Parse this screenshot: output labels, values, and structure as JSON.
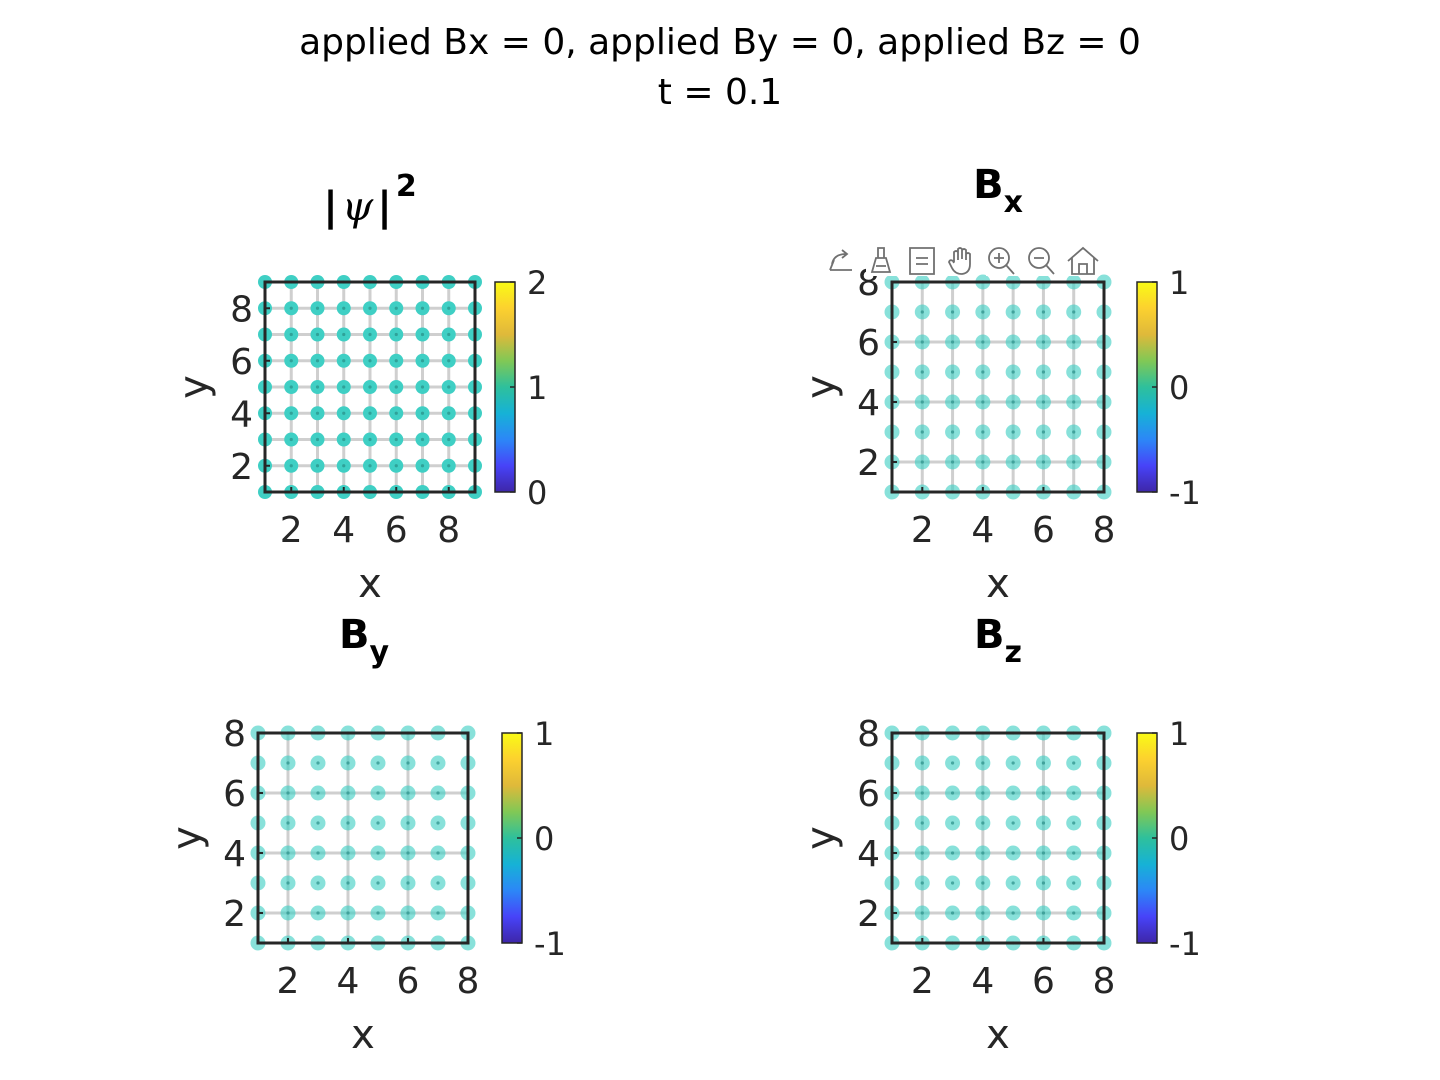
{
  "figure": {
    "title_line1": "applied Bx = 0, applied By = 0, applied Bz = 0",
    "title_line2": "t = 0.1"
  },
  "toolbar": {
    "icons": [
      "export-icon",
      "brush-icon",
      "datatip-icon",
      "pan-icon",
      "zoom-in-icon",
      "zoom-out-icon",
      "home-icon"
    ]
  },
  "colors": {
    "marker": "#3fcfc4",
    "grid": "#cfcfcf",
    "axis": "#262626",
    "colormap": [
      "#3e26a8",
      "#4743f8",
      "#2c87f7",
      "#16b2d6",
      "#2ec09c",
      "#81c855",
      "#dfb93a",
      "#fcd12f",
      "#f9fb15"
    ]
  },
  "chart_data": [
    {
      "type": "scatter",
      "title": "|ψ|²",
      "title_main": "|",
      "title_sym": "ψ",
      "title_end": "|",
      "title_sup": "2",
      "xlabel": "x",
      "ylabel": "y",
      "xlim": [
        1,
        9
      ],
      "ylim": [
        1,
        9
      ],
      "xticks": [
        2,
        4,
        6,
        8
      ],
      "yticks": [
        2,
        4,
        6,
        8
      ],
      "grid_x": [
        1,
        2,
        3,
        4,
        5,
        6,
        7,
        8,
        9
      ],
      "grid_y": [
        1,
        2,
        3,
        4,
        5,
        6,
        7,
        8,
        9
      ],
      "points_x": [
        1,
        2,
        3,
        4,
        5,
        6,
        7,
        8,
        9
      ],
      "points_y": [
        1,
        2,
        3,
        4,
        5,
        6,
        7,
        8,
        9
      ],
      "value": 1,
      "colorbar": {
        "min": 0,
        "max": 2,
        "ticks": [
          "0",
          "1",
          "2"
        ]
      }
    },
    {
      "type": "scatter",
      "title": "Bx",
      "title_main": "B",
      "title_sub": "x",
      "xlabel": "x",
      "ylabel": "y",
      "xlim": [
        1,
        8
      ],
      "ylim": [
        1,
        8
      ],
      "xticks": [
        2,
        4,
        6,
        8
      ],
      "yticks": [
        2,
        4,
        6,
        8
      ],
      "grid_x": [
        1,
        2,
        3,
        4,
        5,
        6,
        7,
        8
      ],
      "grid_y": [
        2,
        4,
        6,
        8
      ],
      "points_x": [
        1,
        2,
        3,
        4,
        5,
        6,
        7,
        8
      ],
      "points_y": [
        1,
        2,
        3,
        4,
        5,
        6,
        7,
        8
      ],
      "value": 0,
      "colorbar": {
        "min": -1,
        "max": 1,
        "ticks": [
          "-1",
          "0",
          "1"
        ]
      }
    },
    {
      "type": "scatter",
      "title": "By",
      "title_main": "B",
      "title_sub": "y",
      "xlabel": "x",
      "ylabel": "y",
      "xlim": [
        1,
        8
      ],
      "ylim": [
        1,
        8
      ],
      "xticks": [
        2,
        4,
        6,
        8
      ],
      "yticks": [
        2,
        4,
        6,
        8
      ],
      "grid_x": [
        2,
        4,
        6,
        8
      ],
      "grid_y": [
        2,
        4,
        6,
        8
      ],
      "points_x": [
        1,
        2,
        3,
        4,
        5,
        6,
        7,
        8
      ],
      "points_y": [
        1,
        2,
        3,
        4,
        5,
        6,
        7,
        8
      ],
      "value": 0,
      "colorbar": {
        "min": -1,
        "max": 1,
        "ticks": [
          "-1",
          "0",
          "1"
        ]
      }
    },
    {
      "type": "scatter",
      "title": "Bz",
      "title_main": "B",
      "title_sub": "z",
      "xlabel": "x",
      "ylabel": "y",
      "xlim": [
        1,
        8
      ],
      "ylim": [
        1,
        8
      ],
      "xticks": [
        2,
        4,
        6,
        8
      ],
      "yticks": [
        2,
        4,
        6,
        8
      ],
      "grid_x": [
        2,
        4,
        6,
        8
      ],
      "grid_y": [
        2,
        4,
        6,
        8
      ],
      "points_x": [
        1,
        2,
        3,
        4,
        5,
        6,
        7,
        8
      ],
      "points_y": [
        1,
        2,
        3,
        4,
        5,
        6,
        7,
        8
      ],
      "value": 0,
      "colorbar": {
        "min": -1,
        "max": 1,
        "ticks": [
          "-1",
          "0",
          "1"
        ]
      }
    }
  ]
}
